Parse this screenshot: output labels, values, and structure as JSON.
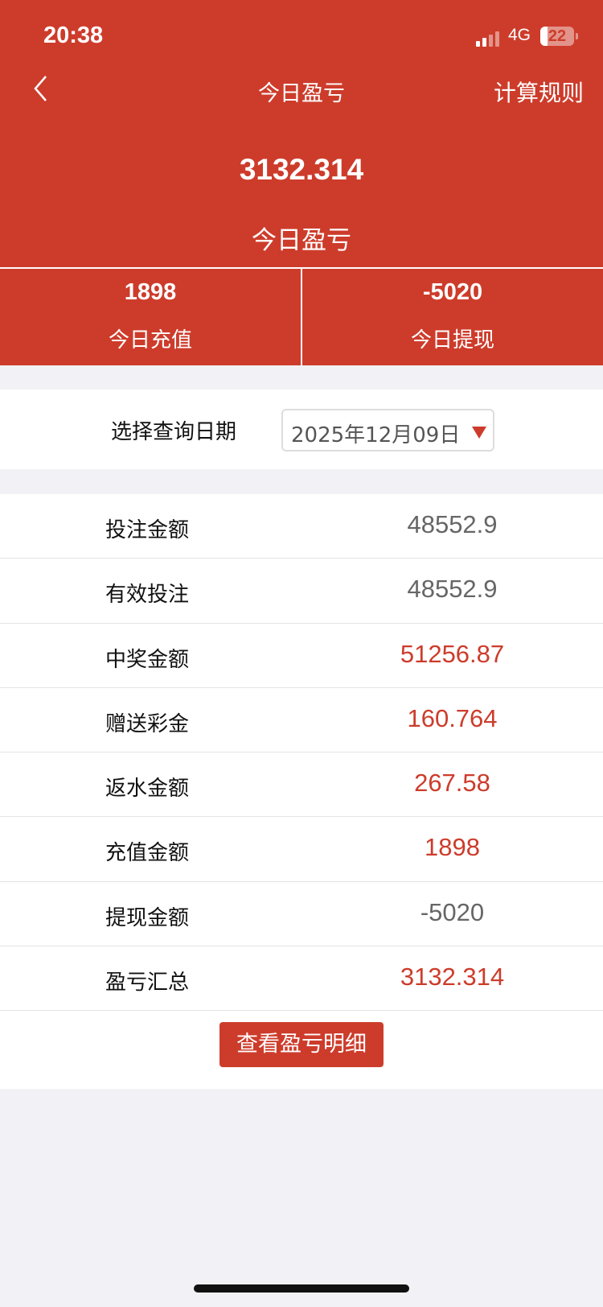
{
  "status_bar": {
    "time": "20:38",
    "network": "4G",
    "battery": "22"
  },
  "nav": {
    "title": "今日盈亏",
    "right_link": "计算规则"
  },
  "summary": {
    "value": "3132.314",
    "label": "今日盈亏"
  },
  "split": [
    {
      "value": "1898",
      "label": "今日充值"
    },
    {
      "value": "-5020",
      "label": "今日提现"
    }
  ],
  "date_query": {
    "label": "选择查询日期",
    "selected": "2025年12月09日"
  },
  "rows": [
    {
      "label": "投注金额",
      "value": "48552.9",
      "tone": "gray"
    },
    {
      "label": "有效投注",
      "value": "48552.9",
      "tone": "gray"
    },
    {
      "label": "中奖金额",
      "value": "51256.87",
      "tone": "red"
    },
    {
      "label": "赠送彩金",
      "value": "160.764",
      "tone": "red"
    },
    {
      "label": "返水金额",
      "value": "267.58",
      "tone": "red"
    },
    {
      "label": "充值金额",
      "value": "1898",
      "tone": "red"
    },
    {
      "label": "提现金额",
      "value": "-5020",
      "tone": "gray"
    },
    {
      "label": "盈亏汇总",
      "value": "3132.314",
      "tone": "red"
    }
  ],
  "detail_button": "查看盈亏明细",
  "colors": {
    "brand": "#cd3c2b",
    "gray_value": "#666666"
  }
}
